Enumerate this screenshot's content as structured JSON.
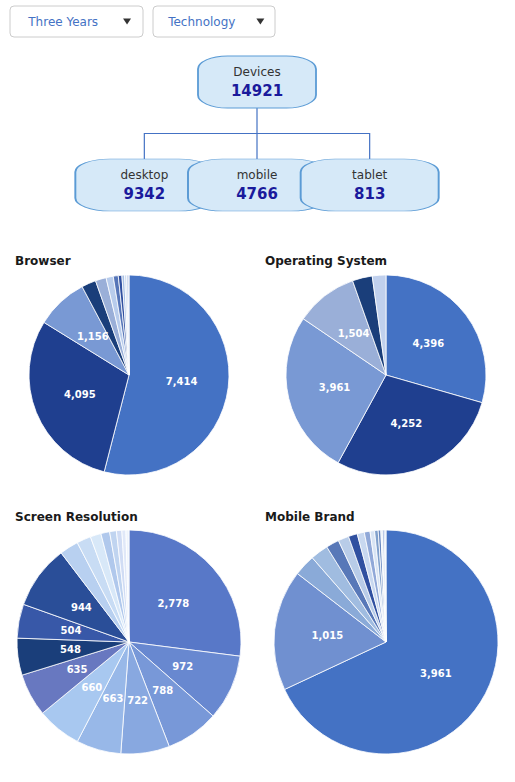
{
  "chart_data": [
    {
      "type": "tree",
      "annotations": [
        "Three Years",
        "Technology"
      ],
      "categories": [
        "Devices",
        "desktop",
        "mobile",
        "tablet"
      ],
      "values": [
        14921,
        9342,
        4766,
        813
      ]
    },
    {
      "type": "pie",
      "title": "Browser",
      "values": [
        7414,
        4095,
        1156,
        320,
        240,
        160,
        110,
        80,
        60,
        45,
        35,
        16
      ],
      "value_labels": [
        "7,414",
        "4,095",
        "1,156",
        null,
        null,
        null,
        null,
        null,
        null,
        null,
        null,
        null
      ],
      "colors": [
        "#4472C4",
        "#1F3F8F",
        "#7999D4",
        "#1A3E7A",
        "#9AAFD8",
        "#B8CCEC",
        "#5575B8",
        "#3050A0",
        "#A8C0E4",
        "#C8D8F0",
        "#B0C4E8",
        "#7080C0"
      ]
    },
    {
      "type": "pie",
      "title": "Operating System",
      "values": [
        4396,
        4252,
        3961,
        1504,
        480,
        329
      ],
      "value_labels": [
        "4,396",
        "4,252",
        "3,961",
        "1,504",
        null,
        null
      ],
      "colors": [
        "#4472C4",
        "#1F3F8F",
        "#7999D4",
        "#9AAFD8",
        "#1A3E7A",
        "#C0D0ED"
      ]
    },
    {
      "type": "pie",
      "title": "Screen Resolution",
      "values": [
        2778,
        972,
        788,
        722,
        663,
        660,
        635,
        548,
        504,
        944,
        280,
        210,
        160,
        130,
        100,
        80,
        60,
        45
      ],
      "value_labels": [
        "2,778",
        "972",
        "788",
        "722",
        "663",
        "660",
        "635",
        "548",
        "504",
        "944",
        null,
        null,
        null,
        null,
        null,
        null,
        null,
        null
      ],
      "colors": [
        "#5878C8",
        "#6888D0",
        "#7898D8",
        "#88A8E0",
        "#98B8E8",
        "#A8C8F0",
        "#6878C0",
        "#1A3E7A",
        "#3858A8",
        "#2A4E98",
        "#B8D0F0",
        "#C8DCF4",
        "#D8E8F8",
        "#B0C8EC",
        "#C0D4F0",
        "#D0DCF4",
        "#E0E8F8",
        "#EEF4FC"
      ]
    },
    {
      "type": "pie",
      "title": "Mobile Brand",
      "values": [
        3961,
        1015,
        180,
        150,
        110,
        90,
        75,
        60,
        48,
        38,
        30,
        22,
        16,
        12,
        9,
        6
      ],
      "value_labels": [
        "3,961",
        "1,015",
        null,
        null,
        null,
        null,
        null,
        null,
        null,
        null,
        null,
        null,
        null,
        null,
        null,
        null
      ],
      "colors": [
        "#4472C4",
        "#7090D0",
        "#8AAAD8",
        "#A0BCE0",
        "#5878B8",
        "#B8CCE8",
        "#3050A0",
        "#C8D8F0",
        "#90A8D8",
        "#D8E4F4",
        "#80A0CC",
        "#6888C0",
        "#E8F0F8",
        "#6888C8",
        "#88A8D8",
        "#A8C4E8"
      ]
    }
  ]
}
